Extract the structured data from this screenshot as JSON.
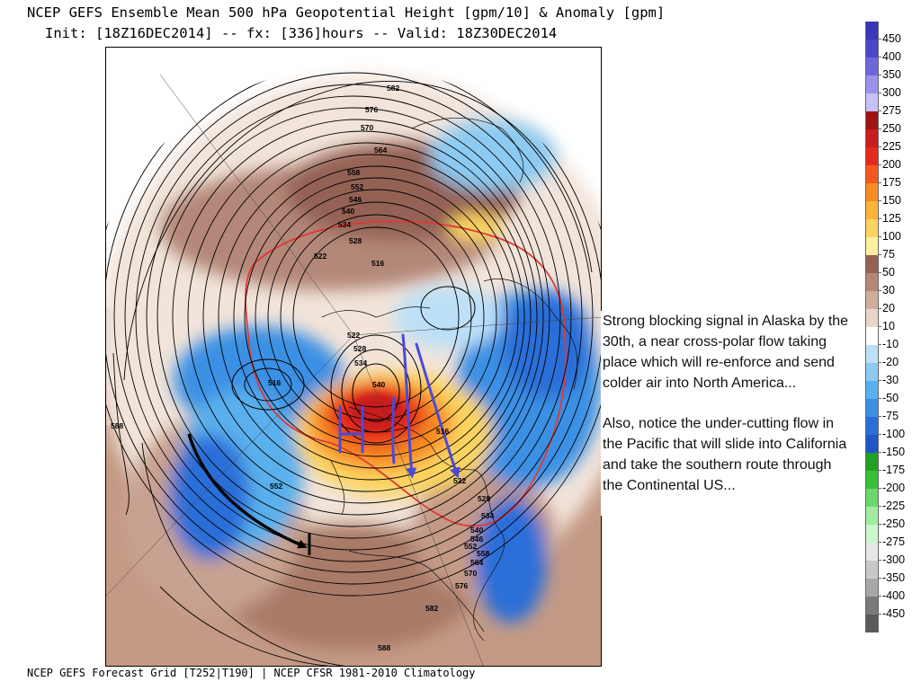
{
  "header": {
    "title": "NCEP GEFS Ensemble Mean 500 hPa Geopotential Height [gpm/10] & Anomaly [gpm]",
    "subtitle": "Init: [18Z16DEC2014] -- fx: [336]hours -- Valid: 18Z30DEC2014"
  },
  "footer": {
    "text": "NCEP GEFS Forecast Grid [T252|T190] | NCEP CFSR 1981-2010 Climatology"
  },
  "annotation": {
    "paragraph1": "Strong blocking signal in Alaska by the 30th, a near cross-polar flow taking place which will re-enforce and send colder air into North America...",
    "paragraph2": "Also, notice the under-cutting flow in the Pacific that will slide into California and take the southern route through the Continental US..."
  },
  "contour_labels": [
    "582",
    "576",
    "570",
    "564",
    "558",
    "552",
    "546",
    "540",
    "534",
    "528",
    "522",
    "516",
    "522",
    "528",
    "534",
    "540",
    "516",
    "552",
    "516",
    "522",
    "528",
    "534",
    "540",
    "546",
    "552",
    "558",
    "564",
    "570",
    "576",
    "582",
    "588",
    "588"
  ],
  "legend": {
    "items": [
      {
        "label": "450",
        "color": "#3a36b8"
      },
      {
        "label": "400",
        "color": "#4c47c8"
      },
      {
        "label": "350",
        "color": "#6e66d8"
      },
      {
        "label": "300",
        "color": "#9a92ea"
      },
      {
        "label": "275",
        "color": "#c8c0fa"
      },
      {
        "label": "250",
        "color": "#9e1414"
      },
      {
        "label": "225",
        "color": "#c81e1e"
      },
      {
        "label": "200",
        "color": "#e42a1a"
      },
      {
        "label": "175",
        "color": "#f45820"
      },
      {
        "label": "150",
        "color": "#f88c24"
      },
      {
        "label": "125",
        "color": "#fab43a"
      },
      {
        "label": "100",
        "color": "#fcd45e"
      },
      {
        "label": "75",
        "color": "#fcf0a0"
      },
      {
        "label": "50",
        "color": "#946254"
      },
      {
        "label": "30",
        "color": "#b48878"
      },
      {
        "label": "20",
        "color": "#d0ae9c"
      },
      {
        "label": "10",
        "color": "#ead6c8"
      },
      {
        "label": "-10",
        "color": "#ffffff"
      },
      {
        "label": "-20",
        "color": "#bce0f8"
      },
      {
        "label": "-30",
        "color": "#8ccaf2"
      },
      {
        "label": "-50",
        "color": "#5ab0ec"
      },
      {
        "label": "-75",
        "color": "#3a90e4"
      },
      {
        "label": "-100",
        "color": "#2a6ed8"
      },
      {
        "label": "-150",
        "color": "#1e56c8"
      },
      {
        "label": "-175",
        "color": "#24a024"
      },
      {
        "label": "-200",
        "color": "#38c038"
      },
      {
        "label": "-225",
        "color": "#6ad86a"
      },
      {
        "label": "-250",
        "color": "#a0eca0"
      },
      {
        "label": "-275",
        "color": "#ccf6cc"
      },
      {
        "label": "-300",
        "color": "#e6e6e6"
      },
      {
        "label": "-350",
        "color": "#c8c8c8"
      },
      {
        "label": "-400",
        "color": "#a8a8a8"
      },
      {
        "label": "-450",
        "color": "#7a7a7a"
      },
      {
        "label": "",
        "color": "#5a5a5a"
      }
    ]
  }
}
